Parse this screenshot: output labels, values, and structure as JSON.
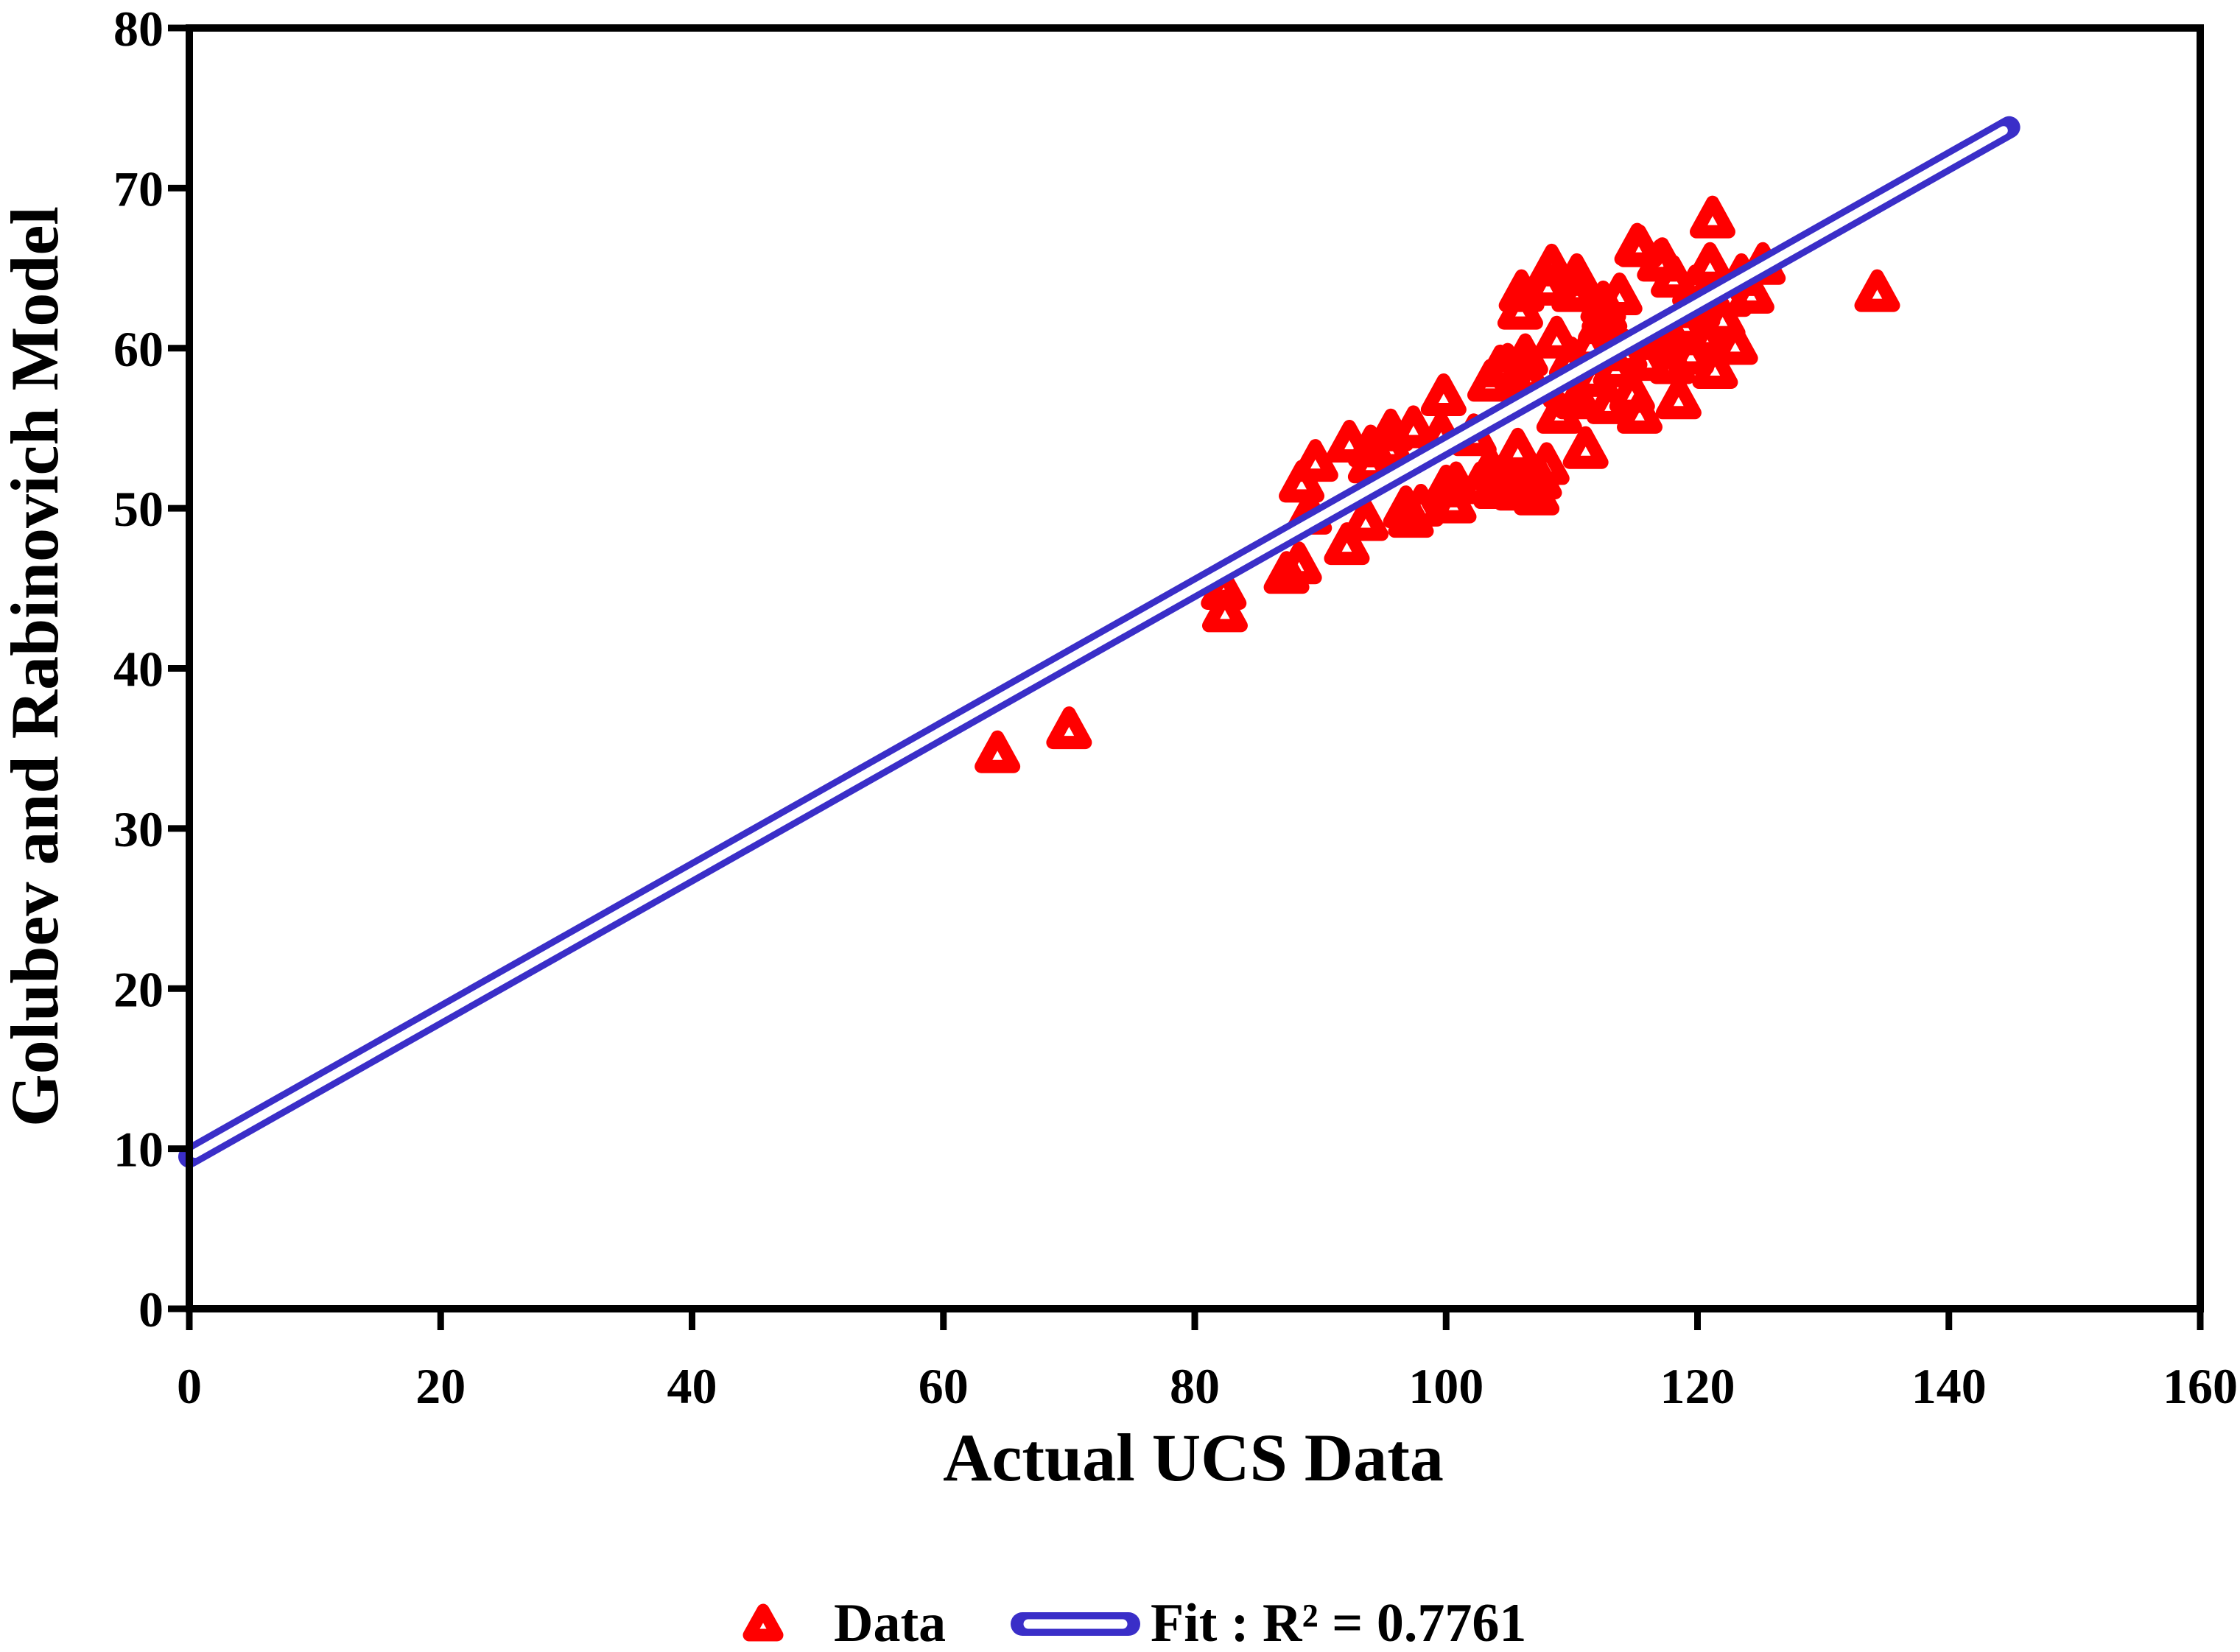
{
  "chart_data": {
    "type": "scatter",
    "title": "",
    "xlabel": "Actual UCS Data",
    "ylabel": "Golubev and Rabinovich Model",
    "xlim": [
      0,
      160
    ],
    "ylim": [
      0,
      80
    ],
    "xticks": [
      0,
      20,
      40,
      60,
      80,
      100,
      120,
      140,
      160
    ],
    "yticks": [
      0,
      10,
      20,
      30,
      40,
      50,
      60,
      70,
      80
    ],
    "grid": false,
    "legend_position": "bottom",
    "colors": {
      "data_marker": "#FF0000",
      "fit_line": "#3A2EC8",
      "axis": "#000000"
    },
    "series": [
      {
        "name": "Data",
        "type": "scatter",
        "marker": "open-triangle",
        "color": "#FF0000",
        "points": [
          [
            64.3,
            34.7
          ],
          [
            70,
            36.2
          ],
          [
            82.3,
            44.9
          ],
          [
            82.4,
            43.5
          ],
          [
            87.3,
            45.9
          ],
          [
            88.3,
            46.5
          ],
          [
            88.5,
            51.6
          ],
          [
            89.1,
            49.6
          ],
          [
            89.6,
            52.9
          ],
          [
            92.1,
            47.7
          ],
          [
            92.3,
            54.1
          ],
          [
            93.6,
            49.2
          ],
          [
            94,
            52.8
          ],
          [
            94,
            53.8
          ],
          [
            95.5,
            53.8
          ],
          [
            95.6,
            54.8
          ],
          [
            96.8,
            50
          ],
          [
            97.2,
            49.4
          ],
          [
            97.4,
            55
          ],
          [
            98,
            50.1
          ],
          [
            99.6,
            54.6
          ],
          [
            99.8,
            57
          ],
          [
            100,
            51.3
          ],
          [
            100.6,
            50.3
          ],
          [
            100.8,
            51.5
          ],
          [
            102.2,
            54.5
          ],
          [
            102.7,
            51.5
          ],
          [
            103.5,
            52.4
          ],
          [
            103.5,
            57.9
          ],
          [
            104,
            51.2
          ],
          [
            104.1,
            51.7
          ],
          [
            104.3,
            58.8
          ],
          [
            104.9,
            58.9
          ],
          [
            105.3,
            51.6
          ],
          [
            105.6,
            51.1
          ],
          [
            105.7,
            53.6
          ],
          [
            105.9,
            62.4
          ],
          [
            106,
            51.3
          ],
          [
            106,
            63.5
          ],
          [
            106.3,
            59.5
          ],
          [
            106.4,
            51.6
          ],
          [
            106.4,
            58.3
          ],
          [
            107.2,
            50.8
          ],
          [
            107.4,
            51.8
          ],
          [
            108,
            52.7
          ],
          [
            108.1,
            63.9
          ],
          [
            108.4,
            65.1
          ],
          [
            108.8,
            60.6
          ],
          [
            109,
            55.9
          ],
          [
            109.5,
            57.5
          ],
          [
            110,
            59.3
          ],
          [
            110.2,
            63.5
          ],
          [
            110.4,
            64.5
          ],
          [
            110.5,
            56.8
          ],
          [
            110.7,
            63.6
          ],
          [
            111.1,
            53.7
          ],
          [
            111.5,
            60.2
          ],
          [
            111.8,
            58.2
          ],
          [
            112.3,
            61.5
          ],
          [
            112.5,
            62.8
          ],
          [
            112.6,
            62.2
          ],
          [
            113,
            56.5
          ],
          [
            113.5,
            58.8
          ],
          [
            113.8,
            63.3
          ],
          [
            114.2,
            59.8
          ],
          [
            114.8,
            57.2
          ],
          [
            115.2,
            66.4
          ],
          [
            115.4,
            55.9
          ],
          [
            115.4,
            66.3
          ],
          [
            116,
            59.2
          ],
          [
            116.5,
            60.5
          ],
          [
            117,
            65.4
          ],
          [
            117.2,
            65.5
          ],
          [
            117.7,
            61
          ],
          [
            118,
            59
          ],
          [
            118.1,
            64.4
          ],
          [
            118.5,
            56.8
          ],
          [
            119,
            61.5
          ],
          [
            119.5,
            59.6
          ],
          [
            119.8,
            63.8
          ],
          [
            120,
            62.5
          ],
          [
            120.5,
            60.8
          ],
          [
            121,
            65.2
          ],
          [
            121.2,
            68.1
          ],
          [
            121.4,
            58.7
          ],
          [
            122,
            61.8
          ],
          [
            122.5,
            63.2
          ],
          [
            123,
            60.2
          ],
          [
            123.5,
            64.5
          ],
          [
            124.3,
            63.4
          ],
          [
            125.2,
            65.2
          ],
          [
            134.3,
            63.5
          ]
        ]
      },
      {
        "name": "Fit",
        "type": "line",
        "style": "double-line-tube",
        "color": "#3A2EC8",
        "fit_line": {
          "x_start": 0,
          "y_start": 9.5,
          "x_end": 144.8,
          "y_end": 73.8
        },
        "r_squared": 0.7761,
        "legend_label": "Fit :  R² = 0.7761"
      }
    ]
  },
  "legend": {
    "data_label": "Data",
    "fit_label": "Fit :  R² = 0.7761"
  }
}
